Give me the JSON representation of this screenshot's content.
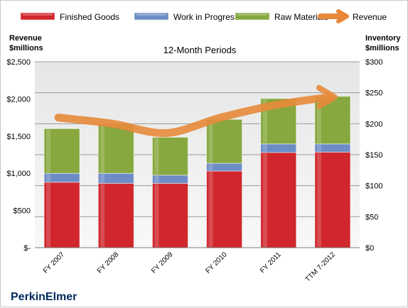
{
  "chart_data": {
    "type": "bar",
    "stacked": true,
    "title": "12-Month Periods",
    "company": "PerkinElmer",
    "y_left_label_line1": "Revenue",
    "y_left_label_line2": "$millions",
    "y_right_label_line1": "Inventory",
    "y_right_label_line2": "$millions",
    "categories": [
      "FY 2007",
      "FY 2008",
      "FY 2009",
      "FY 2010",
      "FY 2011",
      "TTM 7-2012"
    ],
    "y_left_ticks": [
      "$-",
      "$500",
      "$1,000",
      "$1,500",
      "$2,000",
      "$2,500"
    ],
    "y_right_ticks": [
      "$0",
      "$50",
      "$100",
      "$150",
      "$200",
      "$250",
      "$300"
    ],
    "ylim_left": [
      0,
      2500
    ],
    "ylim_right": [
      0,
      300
    ],
    "grid": true,
    "legend_position": "top",
    "series": [
      {
        "name": "Finished Goods",
        "color": "#d0262c",
        "values": [
          880,
          865,
          865,
          1030,
          1280,
          1285
        ]
      },
      {
        "name": "Work in Progress",
        "color": "#6c8cc6",
        "values": [
          120,
          135,
          110,
          105,
          115,
          110
        ]
      },
      {
        "name": "Raw Materials",
        "color": "#86a83e",
        "values": [
          600,
          665,
          510,
          590,
          610,
          640
        ]
      }
    ],
    "line_series": {
      "name": "Revenue",
      "color": "#e8893a",
      "axis": "right",
      "values": [
        210,
        200,
        185,
        210,
        230,
        243
      ]
    }
  }
}
